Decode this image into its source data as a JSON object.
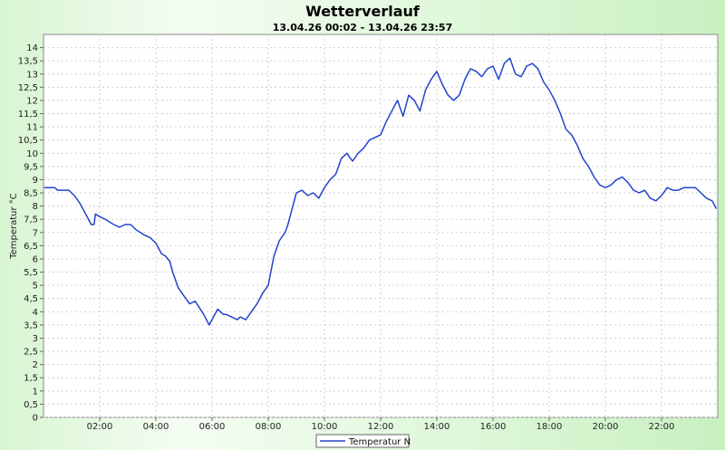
{
  "chart_data": {
    "type": "line",
    "title": "Wetterverlauf",
    "subtitle": "13.04.26 00:02 - 13.04.26 23:57",
    "xlabel": "",
    "ylabel": "Temperatur °C",
    "xlim": [
      0,
      24
    ],
    "ylim": [
      0,
      14.5
    ],
    "x_ticks": [
      2,
      4,
      6,
      8,
      10,
      12,
      14,
      16,
      18,
      20,
      22
    ],
    "x_tick_labels": [
      "02:00",
      "04:00",
      "06:00",
      "08:00",
      "10:00",
      "12:00",
      "14:00",
      "16:00",
      "18:00",
      "20:00",
      "22:00"
    ],
    "y_ticks": [
      0,
      0.5,
      1,
      1.5,
      2,
      2.5,
      3,
      3.5,
      4,
      4.5,
      5,
      5.5,
      6,
      6.5,
      7,
      7.5,
      8,
      8.5,
      9,
      9.5,
      10,
      10.5,
      11,
      11.5,
      12,
      12.5,
      13,
      13.5,
      14
    ],
    "y_tick_labels": [
      "0",
      "0,5",
      "1",
      "1,5",
      "2",
      "2,5",
      "3",
      "3,5",
      "4",
      "4,5",
      "5",
      "5,5",
      "6",
      "6,5",
      "7",
      "7,5",
      "8",
      "8,5",
      "9",
      "9,5",
      "10",
      "10,5",
      "11",
      "11,5",
      "12",
      "12,5",
      "13",
      "13,5",
      "14"
    ],
    "grid": true,
    "legend_position": "bottom-center",
    "series": [
      {
        "name": "Temperatur N",
        "color": "#2244cc",
        "x": [
          0.03,
          0.4,
          0.5,
          0.9,
          1.1,
          1.3,
          1.5,
          1.7,
          1.8,
          1.85,
          2.0,
          2.2,
          2.5,
          2.7,
          2.9,
          3.1,
          3.3,
          3.6,
          3.8,
          4.0,
          4.2,
          4.35,
          4.5,
          4.6,
          4.8,
          5.0,
          5.2,
          5.4,
          5.7,
          5.9,
          6.2,
          6.4,
          6.5,
          6.7,
          6.9,
          7.0,
          7.2,
          7.4,
          7.6,
          7.8,
          8.0,
          8.2,
          8.4,
          8.6,
          8.7,
          8.8,
          9.0,
          9.2,
          9.4,
          9.6,
          9.8,
          10.0,
          10.2,
          10.4,
          10.6,
          10.8,
          11.0,
          11.2,
          11.4,
          11.6,
          11.8,
          12.0,
          12.2,
          12.4,
          12.6,
          12.8,
          13.0,
          13.2,
          13.4,
          13.6,
          13.8,
          14.0,
          14.2,
          14.4,
          14.6,
          14.8,
          15.0,
          15.2,
          15.4,
          15.6,
          15.8,
          16.0,
          16.2,
          16.4,
          16.6,
          16.8,
          17.0,
          17.2,
          17.4,
          17.6,
          17.8,
          18.0,
          18.2,
          18.4,
          18.6,
          18.8,
          19.0,
          19.2,
          19.4,
          19.6,
          19.8,
          20.0,
          20.2,
          20.4,
          20.6,
          20.8,
          21.0,
          21.2,
          21.4,
          21.6,
          21.8,
          22.0,
          22.2,
          22.4,
          22.6,
          22.8,
          23.0,
          23.2,
          23.4,
          23.6,
          23.8,
          23.95
        ],
        "values": [
          8.7,
          8.7,
          8.6,
          8.6,
          8.4,
          8.1,
          7.7,
          7.3,
          7.3,
          7.7,
          7.6,
          7.5,
          7.3,
          7.2,
          7.3,
          7.3,
          7.1,
          6.9,
          6.8,
          6.6,
          6.2,
          6.1,
          5.9,
          5.5,
          4.9,
          4.6,
          4.3,
          4.4,
          3.9,
          3.5,
          4.1,
          3.9,
          3.9,
          3.8,
          3.7,
          3.8,
          3.7,
          4.0,
          4.3,
          4.7,
          5.0,
          6.1,
          6.7,
          7.0,
          7.3,
          7.7,
          8.5,
          8.6,
          8.4,
          8.5,
          8.3,
          8.7,
          9.0,
          9.2,
          9.8,
          10.0,
          9.7,
          10.0,
          10.2,
          10.5,
          10.6,
          10.7,
          11.2,
          11.6,
          12.0,
          11.4,
          12.2,
          12.0,
          11.6,
          12.4,
          12.8,
          13.1,
          12.6,
          12.2,
          12.0,
          12.2,
          12.8,
          13.2,
          13.1,
          12.9,
          13.2,
          13.3,
          12.8,
          13.4,
          13.6,
          13.0,
          12.9,
          13.3,
          13.4,
          13.2,
          12.7,
          12.4,
          12.0,
          11.5,
          10.9,
          10.7,
          10.3,
          9.8,
          9.5,
          9.1,
          8.8,
          8.7,
          8.8,
          9.0,
          9.1,
          8.9,
          8.6,
          8.5,
          8.6,
          8.3,
          8.2,
          8.4,
          8.7,
          8.6,
          8.6,
          8.7,
          8.7,
          8.7,
          8.5,
          8.3,
          8.2,
          7.9
        ]
      }
    ]
  }
}
